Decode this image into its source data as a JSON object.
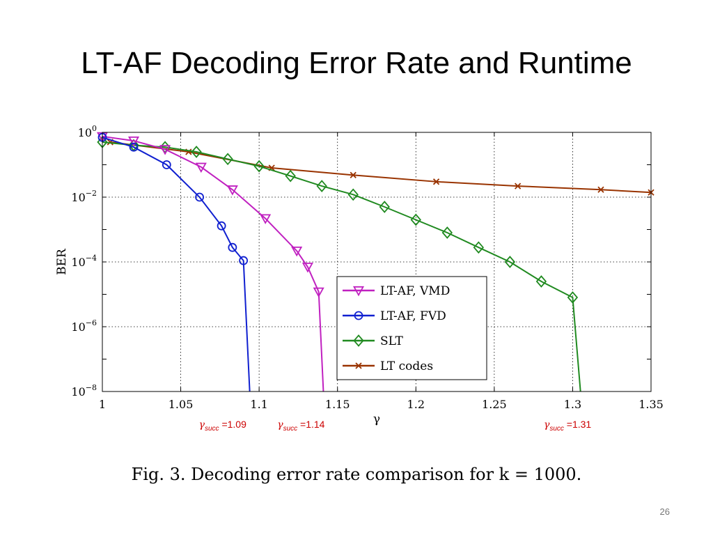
{
  "slide": {
    "title": "LT-AF Decoding Error Rate and Runtime",
    "caption": "Fig. 3.    Decoding error rate comparison for k = 1000.",
    "page_number": "26"
  },
  "annotations": [
    {
      "symbol": "γ",
      "subscript": "succ",
      "text": " =1.09",
      "x": 1.09
    },
    {
      "symbol": "γ",
      "subscript": "succ",
      "text": " =1.14",
      "x": 1.14
    },
    {
      "symbol": "γ",
      "subscript": "succ",
      "text": " =1.31",
      "x": 1.31
    }
  ],
  "chart_data": {
    "type": "line",
    "xlabel": "γ",
    "ylabel": "BER",
    "xlim": [
      1,
      1.35
    ],
    "ylim": [
      1e-08,
      1
    ],
    "yscale": "log",
    "grid": true,
    "legend_position": "bottom-right",
    "x_ticks": [
      "1",
      "1.05",
      "1.1",
      "1.15",
      "1.2",
      "1.25",
      "1.3",
      "1.35"
    ],
    "y_ticks": [
      {
        "base": "10",
        "exp": "0"
      },
      {
        "base": "10",
        "exp": "−2"
      },
      {
        "base": "10",
        "exp": "−4"
      },
      {
        "base": "10",
        "exp": "−6"
      },
      {
        "base": "10",
        "exp": "−8"
      }
    ],
    "series": [
      {
        "name": "LT-AF, VMD",
        "color": "#c020c0",
        "marker": "triangle-down",
        "x": [
          1.0,
          1.02,
          1.04,
          1.063,
          1.083,
          1.104,
          1.124,
          1.131,
          1.138,
          1.141
        ],
        "y": [
          0.75,
          0.55,
          0.3,
          0.085,
          0.017,
          0.0022,
          0.00022,
          7e-05,
          1.2e-05,
          1e-08
        ]
      },
      {
        "name": "LT-AF, FVD",
        "color": "#1020d0",
        "marker": "circle",
        "x": [
          1.0,
          1.02,
          1.041,
          1.062,
          1.076,
          1.083,
          1.09,
          1.094
        ],
        "y": [
          0.7,
          0.35,
          0.1,
          0.01,
          0.0013,
          0.00028,
          0.00011,
          1e-08
        ]
      },
      {
        "name": "SLT",
        "color": "#208a20",
        "marker": "diamond",
        "x": [
          1.0,
          1.02,
          1.04,
          1.06,
          1.08,
          1.1,
          1.12,
          1.14,
          1.16,
          1.18,
          1.2,
          1.22,
          1.24,
          1.26,
          1.28,
          1.3,
          1.305
        ],
        "y": [
          0.5,
          0.4,
          0.35,
          0.25,
          0.15,
          0.09,
          0.045,
          0.022,
          0.012,
          0.005,
          0.002,
          0.0008,
          0.00028,
          0.0001,
          2.5e-05,
          8e-06,
          1e-08
        ]
      },
      {
        "name": "LT codes",
        "color": "#993300",
        "marker": "x",
        "x": [
          1.005,
          1.055,
          1.108,
          1.16,
          1.213,
          1.265,
          1.318,
          1.35
        ],
        "y": [
          0.5,
          0.25,
          0.08,
          0.048,
          0.03,
          0.022,
          0.017,
          0.014
        ]
      }
    ]
  }
}
